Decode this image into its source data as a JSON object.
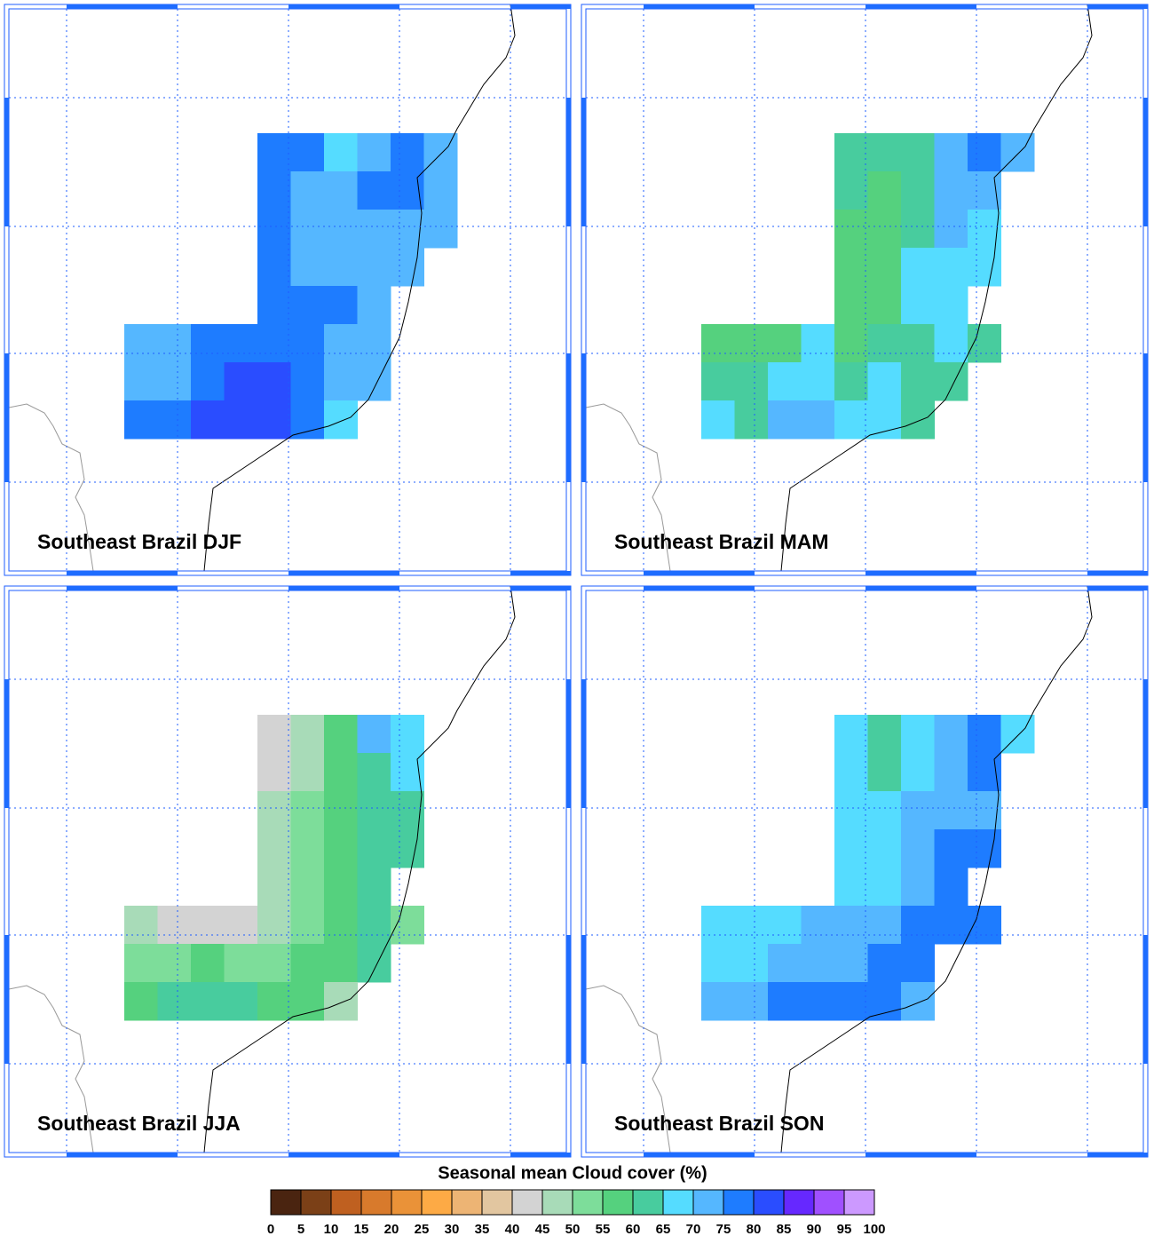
{
  "panels": [
    {
      "title": "Southeast Brazil DJF",
      "grid": [
        [
          null,
          null,
          null,
          null,
          77,
          77,
          67,
          72,
          77,
          72
        ],
        [
          null,
          null,
          null,
          null,
          77,
          72,
          72,
          77,
          77,
          72
        ],
        [
          null,
          null,
          null,
          null,
          77,
          72,
          72,
          72,
          72,
          72
        ],
        [
          null,
          null,
          null,
          null,
          77,
          72,
          72,
          72,
          72,
          null
        ],
        [
          null,
          null,
          null,
          null,
          77,
          77,
          77,
          72,
          null,
          null
        ],
        [
          72,
          72,
          77,
          77,
          77,
          77,
          72,
          72,
          null,
          null
        ],
        [
          72,
          72,
          77,
          82,
          82,
          77,
          72,
          72,
          null,
          null
        ],
        [
          77,
          77,
          82,
          82,
          82,
          77,
          67,
          null,
          null,
          null
        ]
      ]
    },
    {
      "title": "Southeast Brazil MAM",
      "grid": [
        [
          null,
          null,
          null,
          null,
          62,
          62,
          62,
          72,
          77,
          72
        ],
        [
          null,
          null,
          null,
          null,
          62,
          57,
          62,
          72,
          72,
          null
        ],
        [
          null,
          null,
          null,
          null,
          57,
          57,
          62,
          72,
          67,
          null
        ],
        [
          null,
          null,
          null,
          null,
          57,
          57,
          67,
          67,
          67,
          null
        ],
        [
          null,
          null,
          null,
          null,
          57,
          57,
          67,
          67,
          null,
          null
        ],
        [
          57,
          57,
          57,
          67,
          57,
          62,
          62,
          67,
          62,
          null
        ],
        [
          62,
          62,
          67,
          67,
          62,
          67,
          62,
          62,
          null,
          null
        ],
        [
          67,
          62,
          72,
          72,
          67,
          67,
          62,
          null,
          null,
          null
        ]
      ]
    },
    {
      "title": "Southeast Brazil JJA",
      "grid": [
        [
          null,
          null,
          null,
          null,
          42,
          47,
          57,
          72,
          67,
          null
        ],
        [
          null,
          null,
          null,
          null,
          42,
          47,
          57,
          62,
          67,
          null
        ],
        [
          null,
          null,
          null,
          null,
          47,
          52,
          57,
          62,
          62,
          null
        ],
        [
          null,
          null,
          null,
          null,
          47,
          52,
          57,
          62,
          62,
          null
        ],
        [
          null,
          null,
          null,
          null,
          47,
          52,
          57,
          62,
          null,
          null
        ],
        [
          47,
          42,
          42,
          42,
          47,
          52,
          57,
          62,
          52,
          null
        ],
        [
          52,
          52,
          57,
          52,
          52,
          57,
          57,
          62,
          null,
          null
        ],
        [
          57,
          62,
          62,
          62,
          57,
          57,
          47,
          null,
          null,
          null
        ]
      ]
    },
    {
      "title": "Southeast Brazil SON",
      "grid": [
        [
          null,
          null,
          null,
          null,
          67,
          62,
          67,
          72,
          77,
          67
        ],
        [
          null,
          null,
          null,
          null,
          67,
          62,
          67,
          72,
          77,
          null
        ],
        [
          null,
          null,
          null,
          null,
          67,
          67,
          72,
          72,
          72,
          null
        ],
        [
          null,
          null,
          null,
          null,
          67,
          67,
          72,
          77,
          77,
          null
        ],
        [
          null,
          null,
          null,
          null,
          67,
          67,
          72,
          77,
          null,
          null
        ],
        [
          67,
          67,
          67,
          72,
          72,
          72,
          77,
          77,
          77,
          null
        ],
        [
          67,
          67,
          72,
          72,
          72,
          77,
          77,
          null,
          null,
          null
        ],
        [
          72,
          72,
          77,
          77,
          77,
          77,
          72,
          null,
          null,
          null
        ]
      ]
    }
  ],
  "colorbar": {
    "title": "Seasonal mean Cloud cover (%)",
    "ticks": [
      0,
      5,
      10,
      15,
      20,
      25,
      30,
      35,
      40,
      45,
      50,
      55,
      60,
      65,
      70,
      75,
      80,
      85,
      90,
      95,
      100
    ],
    "colors": [
      "#4a2410",
      "#7b4017",
      "#bf6020",
      "#d87a2c",
      "#ea9238",
      "#fdaa45",
      "#edb474",
      "#e2c6a0",
      "#d3d3d3",
      "#a8dbb8",
      "#7ddd9a",
      "#55d17e",
      "#48cc9e",
      "#55dcff",
      "#55b7ff",
      "#1e7cff",
      "#2a4dff",
      "#6628ff",
      "#a050ff",
      "#cc99ff"
    ]
  }
}
